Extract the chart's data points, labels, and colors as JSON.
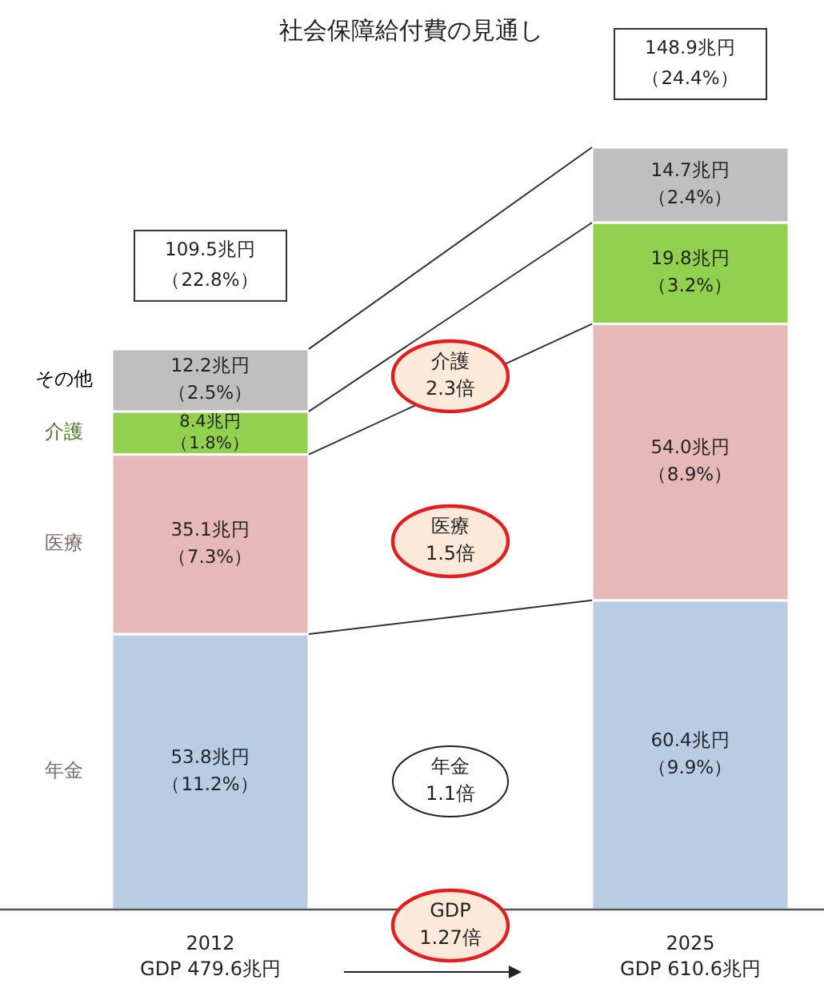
{
  "chart_data": {
    "type": "bar",
    "title": "社会保障給付費の見通し",
    "stacked": true,
    "categories": [
      "2012\nGDP 479.6兆円",
      "2025\nGDP 610.6兆円"
    ],
    "series": [
      {
        "name": "年金",
        "color": "#b8cce4",
        "values": [
          53.8,
          60.4
        ],
        "value_labels": [
          "53.8兆円（11.2%）",
          "60.4兆円（9.9%）"
        ]
      },
      {
        "name": "医療",
        "color": "#e6b9b8",
        "values": [
          35.1,
          54.0
        ],
        "value_labels": [
          "35.1兆円（7.3%）",
          "54.0兆円（8.9%）"
        ]
      },
      {
        "name": "介護",
        "color": "#92d050",
        "values": [
          8.4,
          19.8
        ],
        "value_labels": [
          "8.4兆円（1.8%）",
          "19.8兆円（3.2%）"
        ]
      },
      {
        "name": "その他",
        "color": "#bfbfbf",
        "values": [
          12.2,
          14.7
        ],
        "value_labels": [
          "12.2兆円（2.5%）",
          "14.7兆円（2.4%）"
        ]
      }
    ],
    "totals": [
      "109.5兆円（22.8%）",
      "148.9兆円（24.4%）"
    ],
    "annotations": [
      "介護\n2.3倍",
      "医療\n1.5倍",
      "年金\n1.1倍",
      "GDP\n1.27倍"
    ]
  }
}
